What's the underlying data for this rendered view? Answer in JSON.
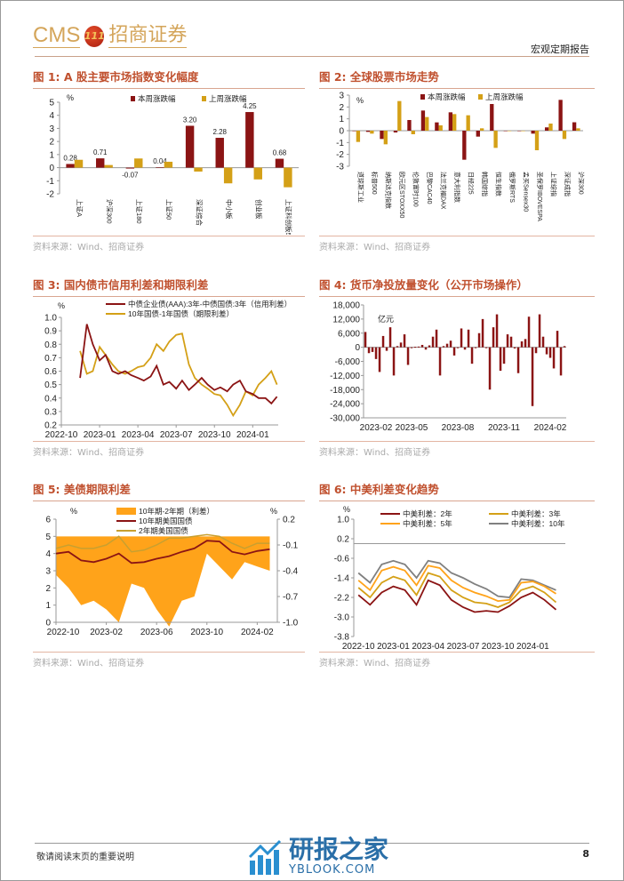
{
  "header": {
    "logo_text": "CMS",
    "logo_badge": "111",
    "logo_cn": "招商证券",
    "doc_type": "宏观定期报告"
  },
  "footer": {
    "note": "敬请阅读末页的重要说明",
    "page": "8",
    "watermark_cn": "研报之家",
    "watermark_en": "YBLOOK.COM"
  },
  "source": "资料来源：Wind、招商证券",
  "colors": {
    "red": "#8b1414",
    "gold": "#d4a017",
    "orange": "#ffa31a",
    "gray": "#808080",
    "title": "#c0502e"
  },
  "figures": [
    {
      "title": "图 1:  A 股主要市场指数变化幅度"
    },
    {
      "title": "图 2:  全球股票市场走势"
    },
    {
      "title": "图 3:  国内债市信用利差和期限利差"
    },
    {
      "title": "图 4:  货币净投放量变化（公开市场操作）"
    },
    {
      "title": "图 5:  美债期限利差"
    },
    {
      "title": "图 6:  中美利差变化趋势"
    }
  ],
  "chart_data": [
    {
      "type": "bar",
      "unit": "%",
      "ylim": [
        -2,
        5
      ],
      "yticks": [
        -2,
        -1,
        0,
        1,
        2,
        3,
        4,
        5
      ],
      "categories": [
        "上证A",
        "沪深300",
        "上证180",
        "上证50",
        "深证综合",
        "中小板",
        "创业板",
        "上证科创板50"
      ],
      "series": [
        {
          "name": "本周涨跌幅",
          "values": [
            0.28,
            0.71,
            -0.07,
            0.04,
            3.2,
            2.28,
            4.25,
            0.68
          ],
          "labels": [
            "0.28",
            "0.71",
            "-0.07",
            "0.04",
            "3.20",
            "2.28",
            "4.25",
            "0.68"
          ]
        },
        {
          "name": "上周涨跌幅",
          "values": [
            0.6,
            0.2,
            0.7,
            0.45,
            -0.3,
            -1.2,
            -0.9,
            -1.5
          ]
        }
      ],
      "legend": "top"
    },
    {
      "type": "bar",
      "unit": "%",
      "ylim": [
        -3,
        3
      ],
      "yticks": [
        -3,
        -2,
        -1,
        0,
        1,
        2,
        3
      ],
      "categories": [
        "道琼斯工业",
        "标普500",
        "纳斯达克指数",
        "欧元区STOXX50",
        "伦敦富时100",
        "巴黎CAC40",
        "法兰克福DAX",
        "意大利指数",
        "日经225",
        "韩国综指",
        "恒生指数",
        "俄罗斯RTS",
        "孟买Sensex30",
        "圣保罗IBOVESPA",
        "上证综指",
        "深证成指",
        "沪深300"
      ],
      "series": [
        {
          "name": "本周涨跌幅",
          "values": [
            0,
            -0.1,
            -0.7,
            -0.15,
            0.9,
            1.7,
            0.7,
            1.55,
            -2.45,
            -0.5,
            2.25,
            0,
            0,
            -0.25,
            0.28,
            2.6,
            0.71
          ]
        },
        {
          "name": "上周涨跌幅",
          "values": [
            -0.95,
            -0.25,
            -1.15,
            2.5,
            -0.3,
            1.15,
            0.45,
            1.4,
            1.3,
            0.2,
            -1.45,
            0,
            0,
            -1.65,
            0.6,
            -0.7,
            0.2
          ]
        }
      ],
      "legend": "top"
    },
    {
      "type": "line",
      "unit": "%",
      "ylim": [
        0.2,
        1.0
      ],
      "yticks": [
        "0.2",
        "0.3",
        "0.4",
        "0.5",
        "0.6",
        "0.7",
        "0.8",
        "0.9",
        "1.0"
      ],
      "xticks": [
        "2022-10",
        "2023-01",
        "2023-04",
        "2023-07",
        "2023-10",
        "2024-01"
      ],
      "xlim_months": [
        0,
        17
      ],
      "x": [
        "2022-11-15",
        "2022-12-01",
        "2022-12-15",
        "2023-01-01",
        "2023-01-15",
        "2023-02-01",
        "2023-02-15",
        "2023-03-01",
        "2023-03-15",
        "2023-04-01",
        "2023-04-15",
        "2023-05-01",
        "2023-05-15",
        "2023-06-01",
        "2023-06-15",
        "2023-07-01",
        "2023-07-15",
        "2023-08-01",
        "2023-08-15",
        "2023-09-01",
        "2023-09-15",
        "2023-10-01",
        "2023-10-15",
        "2023-11-01",
        "2023-11-15",
        "2023-12-01",
        "2023-12-15",
        "2024-01-01",
        "2024-01-15",
        "2024-02-01",
        "2024-02-15",
        "2024-02-28"
      ],
      "series": [
        {
          "name": "中债企业债(AAA):3年-中债国债:3年（信用利差）",
          "values": [
            0.55,
            0.95,
            0.8,
            0.68,
            0.72,
            0.6,
            0.58,
            0.6,
            0.57,
            0.55,
            0.53,
            0.56,
            0.64,
            0.5,
            0.52,
            0.47,
            0.53,
            0.46,
            0.5,
            0.55,
            0.5,
            0.46,
            0.48,
            0.45,
            0.5,
            0.53,
            0.45,
            0.43,
            0.4,
            0.4,
            0.36,
            0.41
          ]
        },
        {
          "name": "10年国债-1年国债（期限利差）",
          "values": [
            0.75,
            0.58,
            0.6,
            0.78,
            0.72,
            0.65,
            0.6,
            0.58,
            0.6,
            0.63,
            0.64,
            0.7,
            0.8,
            0.75,
            0.82,
            0.87,
            0.88,
            0.65,
            0.55,
            0.5,
            0.47,
            0.43,
            0.42,
            0.35,
            0.27,
            0.35,
            0.45,
            0.42,
            0.5,
            0.55,
            0.6,
            0.5
          ]
        }
      ],
      "legend": "top"
    },
    {
      "type": "bar",
      "unit": "亿元",
      "ylim": [
        -30000,
        18000
      ],
      "yticks": [
        "-30,000",
        "-24,000",
        "-18,000",
        "-12,000",
        "-6,000",
        "0",
        "6,000",
        "12,000",
        "18,000"
      ],
      "xticks": [
        {
          "label": "2023-02",
          "index": 0
        },
        {
          "label": "2023-05",
          "index": 13
        },
        {
          "label": "2023-08",
          "index": 26
        },
        {
          "label": "2023-11",
          "index": 39
        },
        {
          "label": "2024-02",
          "index": 52
        }
      ],
      "values": [
        6500,
        -2500,
        -2000,
        -5000,
        -10500,
        4800,
        -1500,
        8500,
        -12000,
        500,
        2000,
        5500,
        -7500,
        -300,
        200,
        300,
        1000,
        -1000,
        800,
        4500,
        7500,
        -12000,
        500,
        1500,
        2800,
        -3500,
        0,
        8000,
        -1000,
        7500,
        -7000,
        -200,
        6000,
        12000,
        0,
        -18000,
        8500,
        14000,
        -10000,
        -7000,
        5500,
        4500,
        -500,
        -11000,
        2500,
        3500,
        13000,
        -25000,
        -2500,
        14000,
        4500,
        -3000,
        -4500,
        -9000,
        7000,
        -12000,
        500
      ]
    },
    {
      "type": "line+area",
      "unit_left": "%",
      "unit_right": "%",
      "ylim_left": [
        0,
        6
      ],
      "ylim_right": [
        -1.0,
        0.2
      ],
      "yticks_left": [
        "0",
        "1",
        "2",
        "3",
        "4",
        "5",
        "6"
      ],
      "yticks_right": [
        "-1.0",
        "-0.7",
        "-0.4",
        "-0.1",
        "0.2"
      ],
      "xticks": [
        "2022-10",
        "2023-02",
        "2023-06",
        "2023-10",
        "2024-02"
      ],
      "xlim_months": [
        0,
        17.6
      ],
      "x": [
        "2022-10-01",
        "2022-11-01",
        "2022-12-01",
        "2023-01-01",
        "2023-02-01",
        "2023-03-01",
        "2023-04-01",
        "2023-05-01",
        "2023-06-01",
        "2023-07-01",
        "2023-08-01",
        "2023-09-01",
        "2023-10-01",
        "2023-11-01",
        "2023-12-01",
        "2024-01-01",
        "2024-02-01",
        "2024-03-01"
      ],
      "series": [
        {
          "name": "10年期-2年期（利差）",
          "axis": "right",
          "values": [
            -0.45,
            -0.6,
            -0.8,
            -0.75,
            -0.85,
            -1.0,
            -0.55,
            -0.6,
            -0.85,
            -1.05,
            -0.75,
            -0.7,
            -0.2,
            -0.35,
            -0.5,
            -0.3,
            -0.35,
            -0.4
          ]
        },
        {
          "name": "10年期美国国债",
          "axis": "left",
          "values": [
            4.0,
            4.1,
            3.6,
            3.5,
            3.7,
            4.0,
            3.45,
            3.5,
            3.7,
            3.85,
            4.1,
            4.3,
            4.75,
            4.7,
            4.1,
            3.95,
            4.15,
            4.25
          ]
        },
        {
          "name": "2年期美国国债",
          "axis": "left",
          "values": [
            4.3,
            4.5,
            4.3,
            4.3,
            4.5,
            5.0,
            4.1,
            4.2,
            4.5,
            4.9,
            4.9,
            5.0,
            5.1,
            5.0,
            4.6,
            4.3,
            4.6,
            4.6
          ]
        }
      ],
      "legend": "top"
    },
    {
      "type": "line",
      "unit": "%",
      "ylim": [
        -3.8,
        1.0
      ],
      "yticks": [
        "-3.8",
        "-3.0",
        "-2.2",
        "-1.4",
        "-0.6",
        "0.2",
        "1.0"
      ],
      "xticks": [
        "2022-10",
        "2023-01",
        "2023-04",
        "2023-07",
        "2023-10",
        "2024-01"
      ],
      "xlim_months": [
        -0.4,
        17.8
      ],
      "x": [
        "2022-10-01",
        "2022-11-01",
        "2022-12-01",
        "2023-01-01",
        "2023-02-01",
        "2023-03-01",
        "2023-04-01",
        "2023-05-01",
        "2023-06-01",
        "2023-07-01",
        "2023-08-01",
        "2023-09-01",
        "2023-10-01",
        "2023-11-01",
        "2023-12-01",
        "2024-01-01",
        "2024-02-01",
        "2024-03-01"
      ],
      "series": [
        {
          "name": "中美利差：2年",
          "values": [
            -2.1,
            -2.5,
            -2.0,
            -1.75,
            -1.9,
            -2.5,
            -1.5,
            -1.7,
            -2.3,
            -2.6,
            -2.8,
            -2.75,
            -2.8,
            -2.55,
            -2.2,
            -2.0,
            -2.3,
            -2.7
          ]
        },
        {
          "name": "中美利差：3年",
          "values": [
            -1.8,
            -2.2,
            -1.6,
            -1.35,
            -1.5,
            -2.1,
            -1.2,
            -1.35,
            -1.9,
            -2.2,
            -2.4,
            -2.45,
            -2.6,
            -2.4,
            -1.9,
            -1.75,
            -2.0,
            -2.4
          ]
        },
        {
          "name": "中美利差：5年",
          "values": [
            -1.5,
            -1.9,
            -1.1,
            -0.95,
            -1.1,
            -1.7,
            -0.9,
            -1.0,
            -1.5,
            -1.8,
            -2.0,
            -2.15,
            -2.35,
            -2.3,
            -1.6,
            -1.55,
            -1.75,
            -2.05
          ]
        },
        {
          "name": "中美利差：10年",
          "values": [
            -1.2,
            -1.6,
            -0.85,
            -0.7,
            -0.85,
            -1.4,
            -0.7,
            -0.8,
            -1.2,
            -1.4,
            -1.65,
            -1.85,
            -2.15,
            -2.2,
            -1.45,
            -1.5,
            -1.7,
            -1.9
          ]
        }
      ],
      "legend": "top"
    }
  ]
}
